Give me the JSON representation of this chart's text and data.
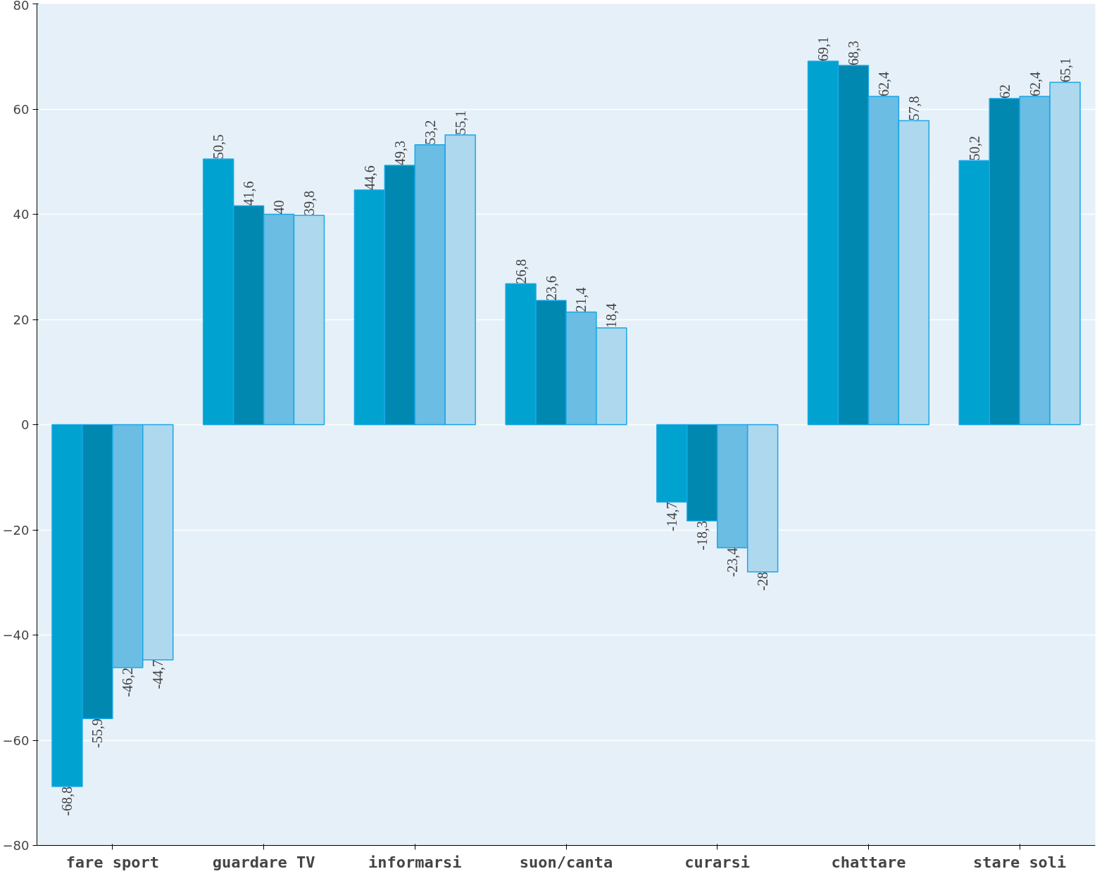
{
  "chart_data": {
    "type": "bar",
    "categories": [
      "fare sport",
      "guardare TV",
      "informarsi",
      "suon/canta",
      "curarsi",
      "chattare",
      "stare soli"
    ],
    "series": [
      {
        "color": "#00a3d0",
        "values": [
          -68.8,
          50.5,
          44.6,
          26.8,
          -14.7,
          69.1,
          50.2
        ],
        "value_labels": [
          "-68,8",
          "50,5",
          "44,6",
          "26,8",
          "-14,7",
          "69,1",
          "50,2"
        ]
      },
      {
        "color": "#0088b0",
        "values": [
          -55.9,
          41.6,
          49.3,
          23.6,
          -18.3,
          68.3,
          62
        ],
        "value_labels": [
          "-55,9",
          "41,6",
          "49,3",
          "23,6",
          "-18,3",
          "68,3",
          "62"
        ]
      },
      {
        "color": "#6bbde3",
        "values": [
          -46.2,
          40,
          53.2,
          21.4,
          -23.4,
          62.4,
          62.4
        ],
        "value_labels": [
          "-46,2",
          "40",
          "53,2",
          "21,4",
          "-23,4",
          "62,4",
          "62,4"
        ]
      },
      {
        "color": "#add8ee",
        "values": [
          -44.7,
          39.8,
          55.1,
          18.4,
          -28,
          57.8,
          65.1
        ],
        "value_labels": [
          "-44,7",
          "39,8",
          "55,1",
          "18,4",
          "-28",
          "57,8",
          "65,1"
        ]
      }
    ],
    "ylim": [
      -80,
      80
    ],
    "yticks": [
      -80,
      -60,
      -40,
      -20,
      0,
      20,
      40,
      60,
      80
    ],
    "grid": "y"
  }
}
